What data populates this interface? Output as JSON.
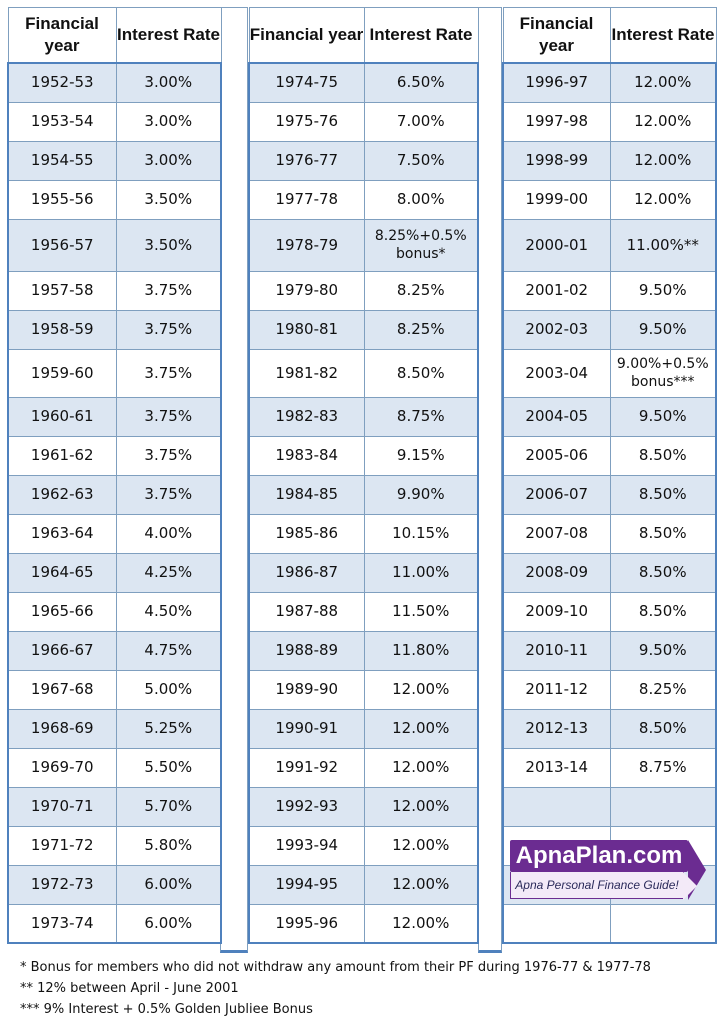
{
  "headers": {
    "year": "Financial year",
    "rate": "Interest Rate"
  },
  "column1": [
    {
      "year": "1952-53",
      "rate": "3.00%"
    },
    {
      "year": "1953-54",
      "rate": "3.00%"
    },
    {
      "year": "1954-55",
      "rate": "3.00%"
    },
    {
      "year": "1955-56",
      "rate": "3.50%"
    },
    {
      "year": "1956-57",
      "rate": "3.50%"
    },
    {
      "year": "1957-58",
      "rate": "3.75%"
    },
    {
      "year": "1958-59",
      "rate": "3.75%"
    },
    {
      "year": "1959-60",
      "rate": "3.75%"
    },
    {
      "year": "1960-61",
      "rate": "3.75%"
    },
    {
      "year": "1961-62",
      "rate": "3.75%"
    },
    {
      "year": "1962-63",
      "rate": "3.75%"
    },
    {
      "year": "1963-64",
      "rate": "4.00%"
    },
    {
      "year": "1964-65",
      "rate": "4.25%"
    },
    {
      "year": "1965-66",
      "rate": "4.50%"
    },
    {
      "year": "1966-67",
      "rate": "4.75%"
    },
    {
      "year": "1967-68",
      "rate": "5.00%"
    },
    {
      "year": "1968-69",
      "rate": "5.25%"
    },
    {
      "year": "1969-70",
      "rate": "5.50%"
    },
    {
      "year": "1970-71",
      "rate": "5.70%"
    },
    {
      "year": "1971-72",
      "rate": "5.80%"
    },
    {
      "year": "1972-73",
      "rate": "6.00%"
    },
    {
      "year": "1973-74",
      "rate": "6.00%"
    }
  ],
  "column2": [
    {
      "year": "1974-75",
      "rate": "6.50%"
    },
    {
      "year": "1975-76",
      "rate": "7.00%"
    },
    {
      "year": "1976-77",
      "rate": "7.50%"
    },
    {
      "year": "1977-78",
      "rate": "8.00%"
    },
    {
      "year": "1978-79",
      "rate": "8.25%+0.5% bonus*"
    },
    {
      "year": "1979-80",
      "rate": "8.25%"
    },
    {
      "year": "1980-81",
      "rate": "8.25%"
    },
    {
      "year": "1981-82",
      "rate": "8.50%"
    },
    {
      "year": "1982-83",
      "rate": "8.75%"
    },
    {
      "year": "1983-84",
      "rate": "9.15%"
    },
    {
      "year": "1984-85",
      "rate": "9.90%"
    },
    {
      "year": "1985-86",
      "rate": "10.15%"
    },
    {
      "year": "1986-87",
      "rate": "11.00%"
    },
    {
      "year": "1987-88",
      "rate": "11.50%"
    },
    {
      "year": "1988-89",
      "rate": "11.80%"
    },
    {
      "year": "1989-90",
      "rate": "12.00%"
    },
    {
      "year": "1990-91",
      "rate": "12.00%"
    },
    {
      "year": "1991-92",
      "rate": "12.00%"
    },
    {
      "year": "1992-93",
      "rate": "12.00%"
    },
    {
      "year": "1993-94",
      "rate": "12.00%"
    },
    {
      "year": "1994-95",
      "rate": "12.00%"
    },
    {
      "year": "1995-96",
      "rate": "12.00%"
    }
  ],
  "column3": [
    {
      "year": "1996-97",
      "rate": "12.00%"
    },
    {
      "year": "1997-98",
      "rate": "12.00%"
    },
    {
      "year": "1998-99",
      "rate": "12.00%"
    },
    {
      "year": "1999-00",
      "rate": "12.00%"
    },
    {
      "year": "2000-01",
      "rate": "11.00%**"
    },
    {
      "year": "2001-02",
      "rate": "9.50%"
    },
    {
      "year": "2002-03",
      "rate": "9.50%"
    },
    {
      "year": "2003-04",
      "rate": "9.00%+0.5% bonus***"
    },
    {
      "year": "2004-05",
      "rate": "9.50%"
    },
    {
      "year": "2005-06",
      "rate": "8.50%"
    },
    {
      "year": "2006-07",
      "rate": "8.50%"
    },
    {
      "year": "2007-08",
      "rate": "8.50%"
    },
    {
      "year": "2008-09",
      "rate": "8.50%"
    },
    {
      "year": "2009-10",
      "rate": "8.50%"
    },
    {
      "year": "2010-11",
      "rate": "9.50%"
    },
    {
      "year": "2011-12",
      "rate": "8.25%"
    },
    {
      "year": "2012-13",
      "rate": "8.50%"
    },
    {
      "year": "2013-14",
      "rate": "8.75%"
    },
    {
      "year": "",
      "rate": ""
    },
    {
      "year": "",
      "rate": ""
    },
    {
      "year": "",
      "rate": ""
    },
    {
      "year": "",
      "rate": ""
    }
  ],
  "logo": {
    "brand": "ApnaPlan.com",
    "tagline": "Apna Personal Finance Guide!",
    "brand_color": "#6b2c91"
  },
  "footnotes": [
    "* Bonus for members who did not withdraw any amount from their PF during 1976-77 & 1977-78",
    "** 12% between April - June 2001",
    "*** 9% Interest + 0.5% Golden Jubliee Bonus"
  ],
  "colors": {
    "row_shade": "#dce6f2",
    "border": "#4f81bd"
  }
}
